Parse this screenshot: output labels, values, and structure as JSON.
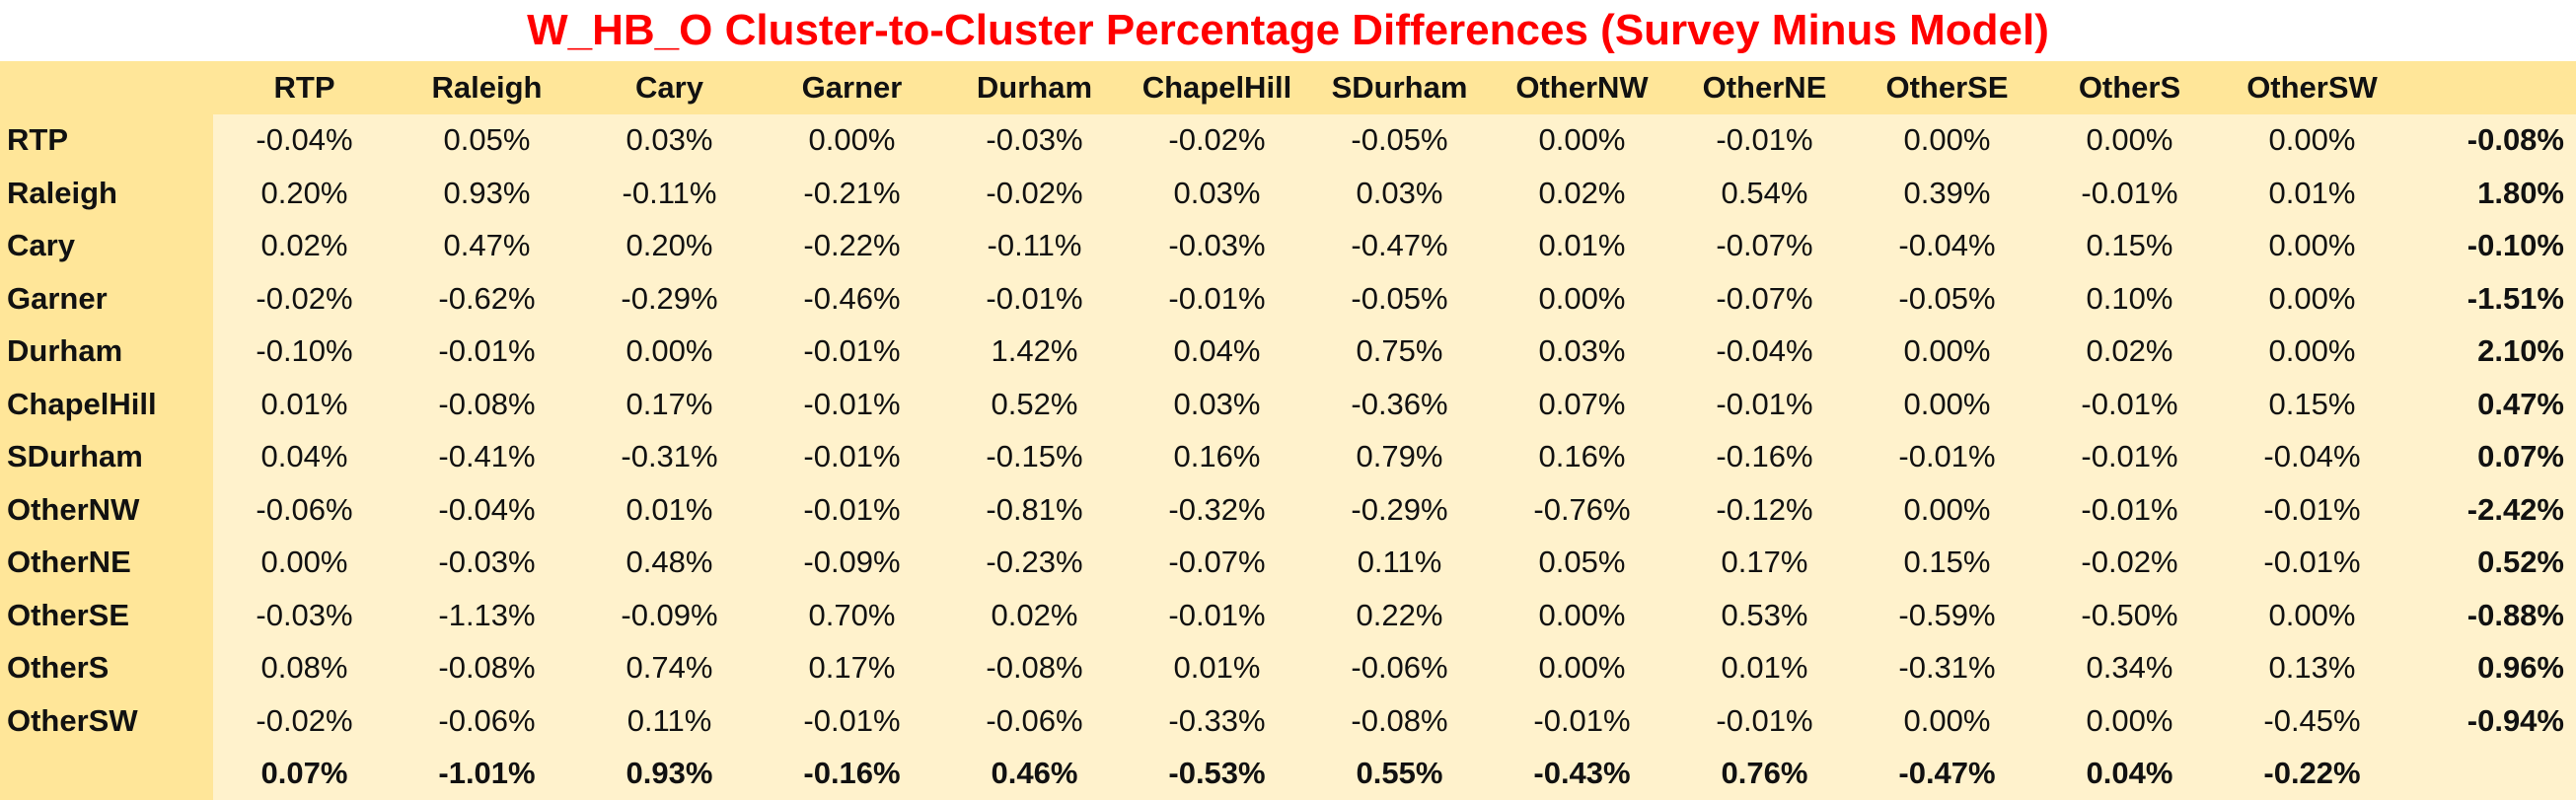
{
  "chart_data": {
    "type": "table",
    "title": "W_HB_O Cluster-to-Cluster Percentage Differences (Survey Minus Model)",
    "columns": [
      "RTP",
      "Raleigh",
      "Cary",
      "Garner",
      "Durham",
      "ChapelHill",
      "SDurham",
      "OtherNW",
      "OtherNE",
      "OtherSE",
      "OtherS",
      "OtherSW"
    ],
    "rows": [
      {
        "label": "RTP",
        "values": [
          "-0.04%",
          "0.05%",
          "0.03%",
          "0.00%",
          "-0.03%",
          "-0.02%",
          "-0.05%",
          "0.00%",
          "-0.01%",
          "0.00%",
          "0.00%",
          "0.00%"
        ],
        "total": "-0.08%"
      },
      {
        "label": "Raleigh",
        "values": [
          "0.20%",
          "0.93%",
          "-0.11%",
          "-0.21%",
          "-0.02%",
          "0.03%",
          "0.03%",
          "0.02%",
          "0.54%",
          "0.39%",
          "-0.01%",
          "0.01%"
        ],
        "total": "1.80%"
      },
      {
        "label": "Cary",
        "values": [
          "0.02%",
          "0.47%",
          "0.20%",
          "-0.22%",
          "-0.11%",
          "-0.03%",
          "-0.47%",
          "0.01%",
          "-0.07%",
          "-0.04%",
          "0.15%",
          "0.00%"
        ],
        "total": "-0.10%"
      },
      {
        "label": "Garner",
        "values": [
          "-0.02%",
          "-0.62%",
          "-0.29%",
          "-0.46%",
          "-0.01%",
          "-0.01%",
          "-0.05%",
          "0.00%",
          "-0.07%",
          "-0.05%",
          "0.10%",
          "0.00%"
        ],
        "total": "-1.51%"
      },
      {
        "label": "Durham",
        "values": [
          "-0.10%",
          "-0.01%",
          "0.00%",
          "-0.01%",
          "1.42%",
          "0.04%",
          "0.75%",
          "0.03%",
          "-0.04%",
          "0.00%",
          "0.02%",
          "0.00%"
        ],
        "total": "2.10%"
      },
      {
        "label": "ChapelHill",
        "values": [
          "0.01%",
          "-0.08%",
          "0.17%",
          "-0.01%",
          "0.52%",
          "0.03%",
          "-0.36%",
          "0.07%",
          "-0.01%",
          "0.00%",
          "-0.01%",
          "0.15%"
        ],
        "total": "0.47%"
      },
      {
        "label": "SDurham",
        "values": [
          "0.04%",
          "-0.41%",
          "-0.31%",
          "-0.01%",
          "-0.15%",
          "0.16%",
          "0.79%",
          "0.16%",
          "-0.16%",
          "-0.01%",
          "-0.01%",
          "-0.04%"
        ],
        "total": "0.07%"
      },
      {
        "label": "OtherNW",
        "values": [
          "-0.06%",
          "-0.04%",
          "0.01%",
          "-0.01%",
          "-0.81%",
          "-0.32%",
          "-0.29%",
          "-0.76%",
          "-0.12%",
          "0.00%",
          "-0.01%",
          "-0.01%"
        ],
        "total": "-2.42%"
      },
      {
        "label": "OtherNE",
        "values": [
          "0.00%",
          "-0.03%",
          "0.48%",
          "-0.09%",
          "-0.23%",
          "-0.07%",
          "0.11%",
          "0.05%",
          "0.17%",
          "0.15%",
          "-0.02%",
          "-0.01%"
        ],
        "total": "0.52%"
      },
      {
        "label": "OtherSE",
        "values": [
          "-0.03%",
          "-1.13%",
          "-0.09%",
          "0.70%",
          "0.02%",
          "-0.01%",
          "0.22%",
          "0.00%",
          "0.53%",
          "-0.59%",
          "-0.50%",
          "0.00%"
        ],
        "total": "-0.88%"
      },
      {
        "label": "OtherS",
        "values": [
          "0.08%",
          "-0.08%",
          "0.74%",
          "0.17%",
          "-0.08%",
          "0.01%",
          "-0.06%",
          "0.00%",
          "0.01%",
          "-0.31%",
          "0.34%",
          "0.13%"
        ],
        "total": "0.96%"
      },
      {
        "label": "OtherSW",
        "values": [
          "-0.02%",
          "-0.06%",
          "0.11%",
          "-0.01%",
          "-0.06%",
          "-0.33%",
          "-0.08%",
          "-0.01%",
          "-0.01%",
          "0.00%",
          "0.00%",
          "-0.45%"
        ],
        "total": "-0.94%"
      }
    ],
    "column_totals": [
      "0.07%",
      "-1.01%",
      "0.93%",
      "-0.16%",
      "0.46%",
      "-0.53%",
      "0.55%",
      "-0.43%",
      "0.76%",
      "-0.47%",
      "0.04%",
      "-0.22%"
    ],
    "colors": {
      "title": "#ff0000",
      "header_fill": "#ffe699",
      "cell_fill": "#fff2cc"
    }
  }
}
